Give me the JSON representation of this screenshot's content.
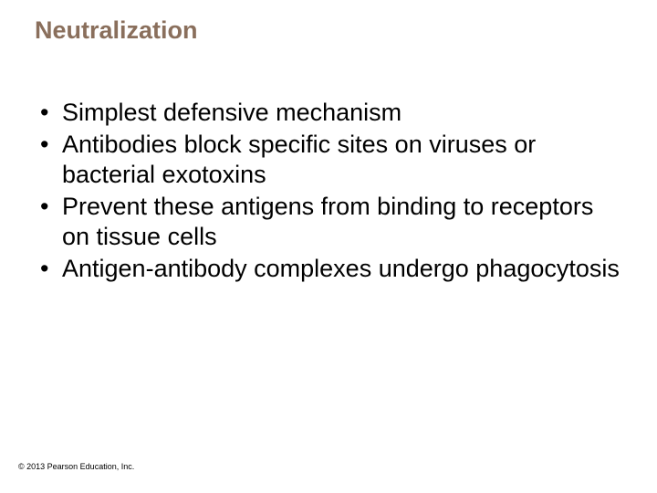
{
  "title": {
    "text": "Neutralization",
    "color": "#8a6f5c",
    "fontsize": 27
  },
  "bullets": {
    "items": [
      "Simplest defensive mechanism",
      "Antibodies block specific sites on viruses or bacterial exotoxins",
      "Prevent these antigens from binding to receptors on tissue cells",
      "Antigen-antibody complexes undergo phagocytosis"
    ],
    "color": "#000000",
    "fontsize": 27,
    "line_height": 1.22
  },
  "copyright": {
    "text": "© 2013 Pearson Education, Inc.",
    "color": "#000000",
    "fontsize": 9
  },
  "background_color": "#ffffff"
}
